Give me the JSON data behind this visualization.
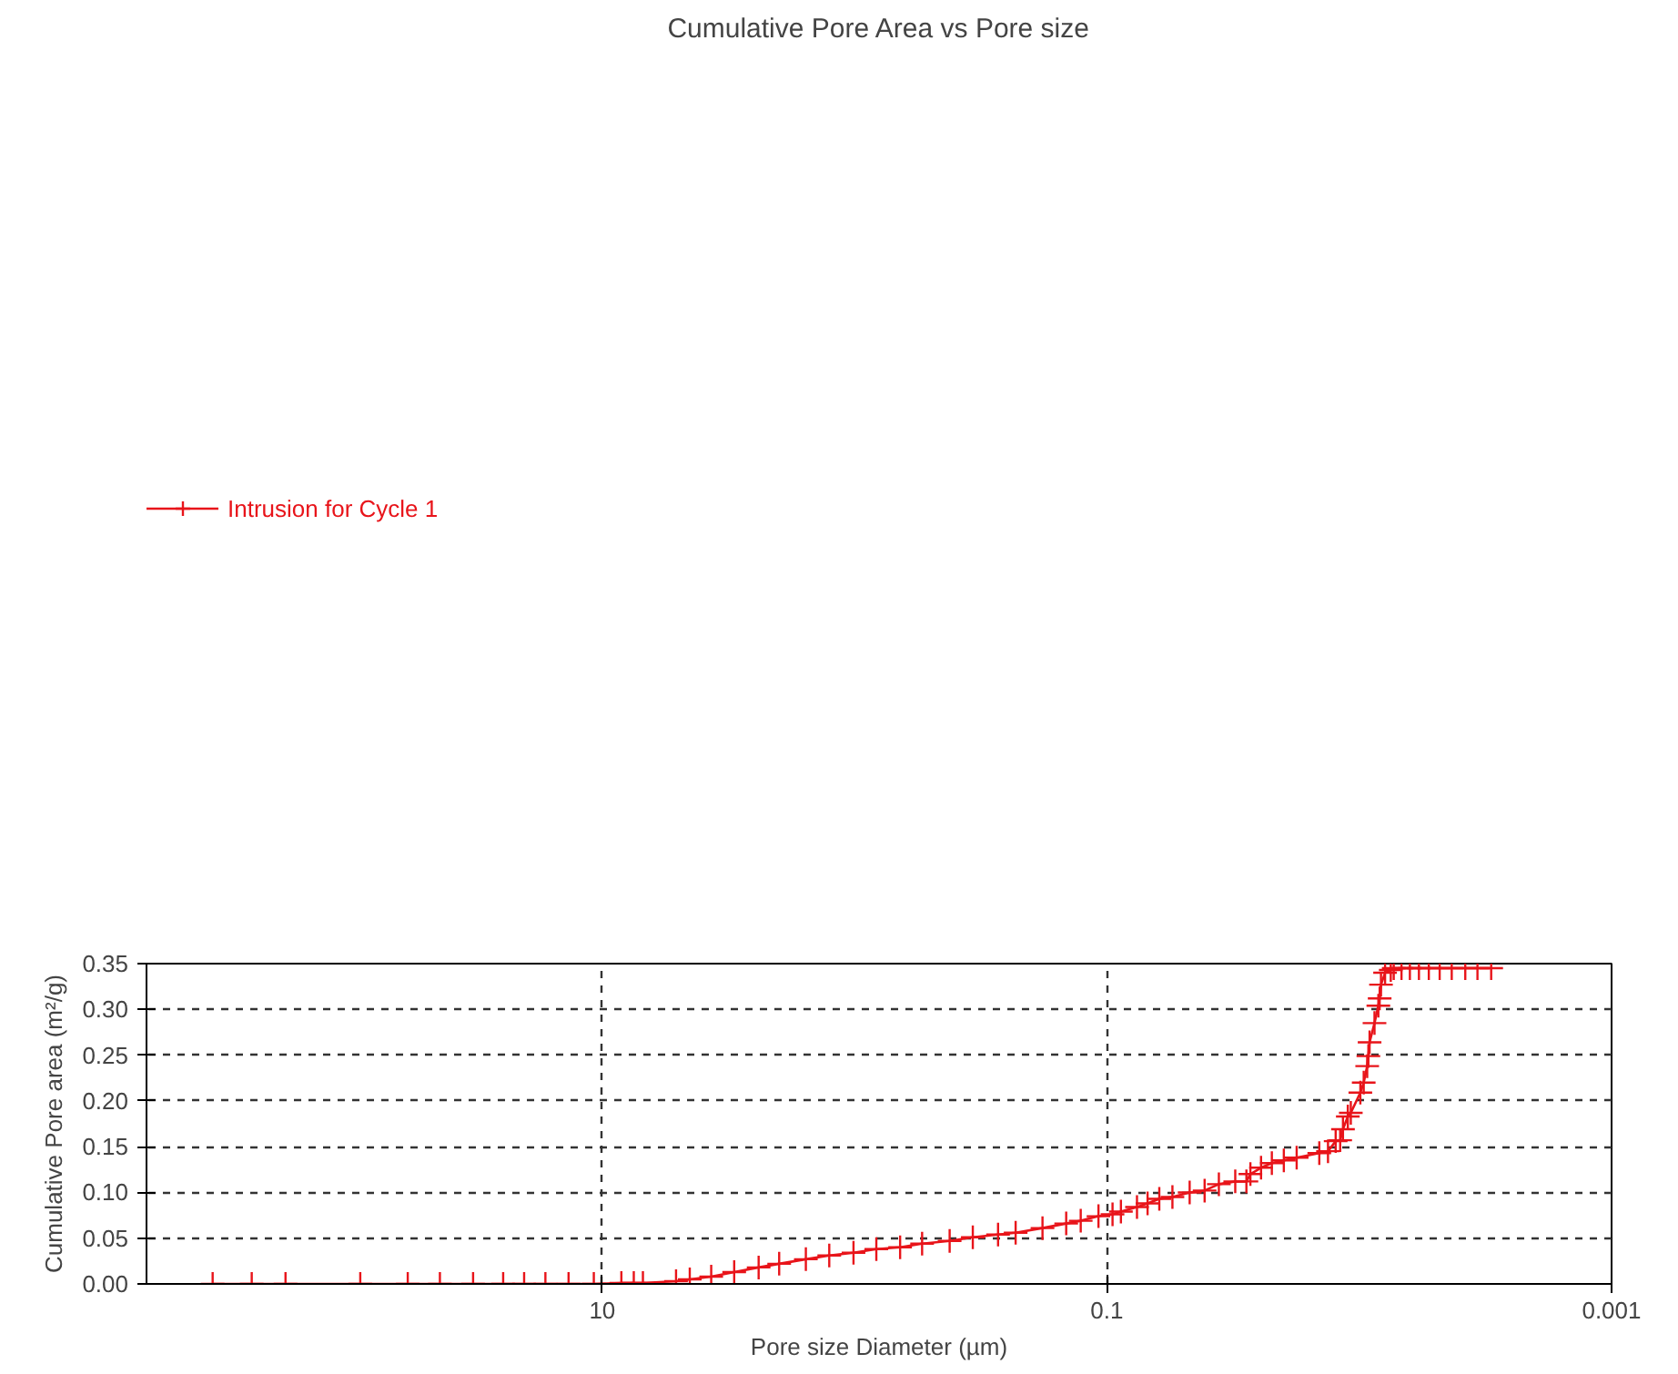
{
  "chart_data": {
    "type": "line",
    "title": "Cumulative Pore Area vs Pore size",
    "xlabel": "Pore size Diameter (µm)",
    "ylabel": "Cumulative Pore area (m²/g)",
    "log": "x",
    "grid": true,
    "legend": "top left",
    "marker": "cross",
    "line_style": "solid",
    "xlim": [
      640,
      0.001
    ],
    "xticks": [
      10,
      0.1,
      0.001
    ],
    "ylim": [
      0,
      0.35
    ],
    "yticks": [
      {
        "value": 0,
        "label": "0.00"
      },
      {
        "value": 0.05,
        "label": "0.05"
      },
      {
        "value": 0.1,
        "label": "0.10"
      },
      {
        "value": 0.15,
        "label": "0.15"
      },
      {
        "value": 0.2,
        "label": "0.20"
      },
      {
        "value": 0.25,
        "label": "0.25"
      },
      {
        "value": 0.3,
        "label": "0.30"
      },
      {
        "value": 0.35,
        "label": "0.35"
      }
    ],
    "series": [
      {
        "name": "Intrusion for Cycle 1",
        "color": "#e8141a",
        "x": [
          350,
          245,
          180,
          91,
          59,
          44,
          32.5,
          24.7,
          20.4,
          16.8,
          13.6,
          10.8,
          8.4,
          7.5,
          6.9,
          5.1,
          4.5,
          3.7,
          3.0,
          2.4,
          1.99,
          1.56,
          1.26,
          1.01,
          0.82,
          0.66,
          0.54,
          0.42,
          0.34,
          0.27,
          0.23,
          0.18,
          0.145,
          0.127,
          0.108,
          0.095,
          0.088,
          0.076,
          0.069,
          0.062,
          0.055,
          0.047,
          0.041,
          0.036,
          0.031,
          0.028,
          0.027,
          0.0245,
          0.0222,
          0.0199,
          0.0177,
          0.0144,
          0.0133,
          0.0124,
          0.0119,
          0.0116,
          0.0111,
          0.0108,
          0.0099,
          0.0096,
          0.0093,
          0.0092,
          0.0091,
          0.0087,
          0.0084,
          0.0083,
          0.0082,
          0.0079,
          0.0075,
          0.0073,
          0.0068,
          0.0063,
          0.0058,
          0.0053,
          0.0048,
          0.0043,
          0.0038,
          0.0034,
          0.003
        ],
        "values": [
          0,
          0,
          0,
          0,
          0,
          0,
          0,
          0,
          0,
          0,
          0,
          0,
          0.001,
          0.001,
          0.001,
          0.003,
          0.005,
          0.008,
          0.013,
          0.018,
          0.022,
          0.027,
          0.031,
          0.034,
          0.038,
          0.04,
          0.044,
          0.047,
          0.051,
          0.054,
          0.056,
          0.061,
          0.066,
          0.069,
          0.074,
          0.076,
          0.079,
          0.084,
          0.088,
          0.093,
          0.095,
          0.1,
          0.102,
          0.109,
          0.112,
          0.112,
          0.12,
          0.127,
          0.132,
          0.135,
          0.138,
          0.143,
          0.145,
          0.156,
          0.157,
          0.169,
          0.183,
          0.187,
          0.209,
          0.22,
          0.238,
          0.249,
          0.264,
          0.285,
          0.304,
          0.312,
          0.327,
          0.34,
          0.343,
          0.345,
          0.345,
          0.345,
          0.345,
          0.345,
          0.345,
          0.345,
          0.345,
          0.345,
          0.345
        ]
      }
    ]
  }
}
